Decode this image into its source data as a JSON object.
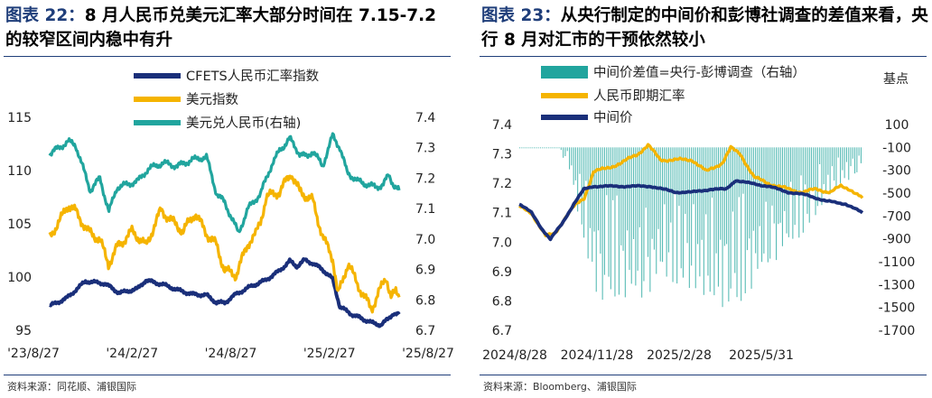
{
  "left": {
    "title_label": "图表 22：",
    "title_text": "8 月人民币兑美元汇率大部分时间在 7.15-7.2 的较窄区间内稳中有升",
    "source": "资料来源：同花顺、浦银国际",
    "chart_data": {
      "type": "line",
      "x_tick_labels": [
        "'23/8/27",
        "'24/2/27",
        "'24/8/27",
        "'25/2/27",
        "'25/8/27"
      ],
      "x_range": [
        "2023-08-27",
        "2025-08-27"
      ],
      "y_left": {
        "ticks": [
          95,
          100,
          105,
          110,
          115
        ],
        "range": [
          95,
          115
        ]
      },
      "y_right": {
        "ticks": [
          6.7,
          6.8,
          6.9,
          7.0,
          7.1,
          7.2,
          7.3,
          7.4
        ],
        "range": [
          6.7,
          7.4
        ]
      },
      "legend_position": "top-left",
      "grid": false,
      "series": [
        {
          "name": "CFETS人民币汇率指数",
          "axis": "left",
          "color": "#1a2f7a",
          "points": [
            [
              "2023-08-27",
              97.3
            ],
            [
              "2023-10-01",
              98.0
            ],
            [
              "2023-11-10",
              99.6
            ],
            [
              "2023-12-20",
              99.4
            ],
            [
              "2024-01-20",
              98.5
            ],
            [
              "2024-02-27",
              98.9
            ],
            [
              "2024-03-15",
              99.7
            ],
            [
              "2024-04-20",
              99.3
            ],
            [
              "2024-05-20",
              98.8
            ],
            [
              "2024-06-20",
              98.4
            ],
            [
              "2024-07-20",
              98.3
            ],
            [
              "2024-08-10",
              97.6
            ],
            [
              "2024-08-27",
              97.6
            ],
            [
              "2024-09-20",
              98.4
            ],
            [
              "2024-10-20",
              99.1
            ],
            [
              "2024-11-20",
              99.7
            ],
            [
              "2024-12-20",
              100.6
            ],
            [
              "2025-01-10",
              101.5
            ],
            [
              "2025-01-25",
              101.0
            ],
            [
              "2025-02-10",
              101.6
            ],
            [
              "2025-02-27",
              101.3
            ],
            [
              "2025-03-20",
              100.7
            ],
            [
              "2025-04-10",
              99.8
            ],
            [
              "2025-04-25",
              97.2
            ],
            [
              "2025-05-10",
              96.8
            ],
            [
              "2025-05-20",
              96.5
            ],
            [
              "2025-06-10",
              96.1
            ],
            [
              "2025-07-01",
              95.7
            ],
            [
              "2025-07-20",
              95.5
            ],
            [
              "2025-08-05",
              96.1
            ],
            [
              "2025-08-15",
              96.6
            ],
            [
              "2025-08-27",
              96.5
            ]
          ]
        },
        {
          "name": "美元指数",
          "axis": "left",
          "color": "#f5b400",
          "points": [
            [
              "2023-08-27",
              103.8
            ],
            [
              "2023-09-20",
              105.5
            ],
            [
              "2023-10-05",
              106.8
            ],
            [
              "2023-10-20",
              106.2
            ],
            [
              "2023-11-15",
              104.3
            ],
            [
              "2023-12-10",
              103.5
            ],
            [
              "2023-12-28",
              101.2
            ],
            [
              "2024-01-15",
              102.8
            ],
            [
              "2024-02-15",
              104.3
            ],
            [
              "2024-02-27",
              103.8
            ],
            [
              "2024-03-15",
              102.9
            ],
            [
              "2024-04-16",
              106.3
            ],
            [
              "2024-05-10",
              105.2
            ],
            [
              "2024-06-01",
              104.3
            ],
            [
              "2024-06-26",
              106.0
            ],
            [
              "2024-07-20",
              104.1
            ],
            [
              "2024-08-10",
              103.0
            ],
            [
              "2024-08-27",
              100.6
            ],
            [
              "2024-09-20",
              100.2
            ],
            [
              "2024-10-15",
              103.2
            ],
            [
              "2024-10-31",
              104.0
            ],
            [
              "2024-11-10",
              105.2
            ],
            [
              "2024-11-22",
              107.5
            ],
            [
              "2024-12-20",
              108.0
            ],
            [
              "2025-01-13",
              109.8
            ],
            [
              "2025-01-31",
              108.0
            ],
            [
              "2025-02-27",
              107.2
            ],
            [
              "2025-03-20",
              103.8
            ],
            [
              "2025-04-10",
              101.8
            ],
            [
              "2025-04-21",
              98.3
            ],
            [
              "2025-05-12",
              101.3
            ],
            [
              "2025-06-01",
              99.3
            ],
            [
              "2025-06-30",
              97.0
            ],
            [
              "2025-07-15",
              98.5
            ],
            [
              "2025-07-31",
              100.0
            ],
            [
              "2025-08-10",
              98.2
            ],
            [
              "2025-08-20",
              98.5
            ],
            [
              "2025-08-27",
              98.1
            ]
          ]
        },
        {
          "name": "美元兑人民币(右轴)",
          "axis": "right",
          "color": "#21a59e",
          "points": [
            [
              "2023-08-27",
              7.28
            ],
            [
              "2023-09-15",
              7.3
            ],
            [
              "2023-10-05",
              7.32
            ],
            [
              "2023-10-20",
              7.31
            ],
            [
              "2023-11-20",
              7.16
            ],
            [
              "2023-12-10",
              7.2
            ],
            [
              "2023-12-29",
              7.09
            ],
            [
              "2024-01-15",
              7.17
            ],
            [
              "2024-02-27",
              7.19
            ],
            [
              "2024-03-20",
              7.23
            ],
            [
              "2024-04-20",
              7.25
            ],
            [
              "2024-05-20",
              7.24
            ],
            [
              "2024-06-20",
              7.26
            ],
            [
              "2024-07-20",
              7.27
            ],
            [
              "2024-08-10",
              7.15
            ],
            [
              "2024-08-27",
              7.12
            ],
            [
              "2024-09-25",
              7.02
            ],
            [
              "2024-10-15",
              7.1
            ],
            [
              "2024-11-10",
              7.15
            ],
            [
              "2024-12-05",
              7.25
            ],
            [
              "2024-12-20",
              7.29
            ],
            [
              "2025-01-10",
              7.33
            ],
            [
              "2025-01-31",
              7.28
            ],
            [
              "2025-02-15",
              7.27
            ],
            [
              "2025-02-27",
              7.29
            ],
            [
              "2025-03-20",
              7.24
            ],
            [
              "2025-04-10",
              7.34
            ],
            [
              "2025-04-25",
              7.3
            ],
            [
              "2025-05-10",
              7.22
            ],
            [
              "2025-06-01",
              7.19
            ],
            [
              "2025-06-20",
              7.18
            ],
            [
              "2025-07-10",
              7.17
            ],
            [
              "2025-07-25",
              7.18
            ],
            [
              "2025-08-05",
              7.21
            ],
            [
              "2025-08-15",
              7.18
            ],
            [
              "2025-08-27",
              7.16
            ]
          ]
        }
      ]
    }
  },
  "right": {
    "title_label": "图表 23：",
    "title_text": "从央行制定的中间价和彭博社调查的差值来看，央行 8 月对汇市的干预依然较小",
    "source": "资料来源：Bloomberg、浦银国际",
    "unit_right": "基点",
    "chart_data": {
      "type": "bar+line",
      "x_tick_labels": [
        "2024/8/28",
        "2024/11/28",
        "2025/2/28",
        "2025/5/31"
      ],
      "x_range": [
        "2024-08-28",
        "2025-08-28"
      ],
      "y_left": {
        "ticks": [
          6.7,
          6.8,
          6.9,
          7.0,
          7.1,
          7.2,
          7.3,
          7.4
        ],
        "range": [
          6.7,
          7.4
        ]
      },
      "y_right": {
        "ticks": [
          100,
          -100,
          -300,
          -500,
          -700,
          -900,
          -1100,
          -1300,
          -1500,
          -1700
        ],
        "range": [
          -1700,
          100
        ]
      },
      "legend_position": "top-left",
      "grid": false,
      "bars": {
        "name": "中间价差值=央行-彭博调查（右轴）",
        "axis": "right",
        "color": "#21a59e",
        "envelope": [
          [
            "2024-08-28",
            -30
          ],
          [
            "2024-10-05",
            -60
          ],
          [
            "2024-10-20",
            -300
          ],
          [
            "2024-11-05",
            -1000
          ],
          [
            "2024-11-20",
            -1450
          ],
          [
            "2024-12-10",
            -1400
          ],
          [
            "2025-01-05",
            -1450
          ],
          [
            "2025-01-25",
            -1250
          ],
          [
            "2025-02-15",
            -1300
          ],
          [
            "2025-03-10",
            -1400
          ],
          [
            "2025-04-01",
            -1500
          ],
          [
            "2025-04-20",
            -1450
          ],
          [
            "2025-05-10",
            -1250
          ],
          [
            "2025-06-01",
            -1050
          ],
          [
            "2025-06-20",
            -900
          ],
          [
            "2025-07-10",
            -700
          ],
          [
            "2025-07-25",
            -500
          ],
          [
            "2025-08-10",
            -400
          ],
          [
            "2025-08-28",
            -300
          ]
        ]
      },
      "series": [
        {
          "name": "人民币即期汇率",
          "axis": "left",
          "color": "#f5b400",
          "points": [
            [
              "2024-08-28",
              7.12
            ],
            [
              "2024-09-10",
              7.1
            ],
            [
              "2024-09-25",
              7.02
            ],
            [
              "2024-10-05",
              7.03
            ],
            [
              "2024-10-15",
              7.08
            ],
            [
              "2024-10-25",
              7.12
            ],
            [
              "2024-11-05",
              7.15
            ],
            [
              "2024-11-15",
              7.24
            ],
            [
              "2024-11-28",
              7.25
            ],
            [
              "2024-12-15",
              7.27
            ],
            [
              "2025-01-01",
              7.3
            ],
            [
              "2025-01-12",
              7.33
            ],
            [
              "2025-01-25",
              7.28
            ],
            [
              "2025-02-15",
              7.28
            ],
            [
              "2025-02-28",
              7.28
            ],
            [
              "2025-03-15",
              7.24
            ],
            [
              "2025-04-01",
              7.27
            ],
            [
              "2025-04-10",
              7.32
            ],
            [
              "2025-04-20",
              7.3
            ],
            [
              "2025-05-05",
              7.22
            ],
            [
              "2025-05-20",
              7.2
            ],
            [
              "2025-06-10",
              7.18
            ],
            [
              "2025-06-25",
              7.17
            ],
            [
              "2025-07-10",
              7.18
            ],
            [
              "2025-07-25",
              7.17
            ],
            [
              "2025-08-05",
              7.19
            ],
            [
              "2025-08-15",
              7.18
            ],
            [
              "2025-08-28",
              7.15
            ]
          ]
        },
        {
          "name": "中间价",
          "axis": "left",
          "color": "#1a2f7a",
          "points": [
            [
              "2024-08-28",
              7.13
            ],
            [
              "2024-09-10",
              7.1
            ],
            [
              "2024-09-20",
              7.05
            ],
            [
              "2024-09-30",
              7.01
            ],
            [
              "2024-10-12",
              7.06
            ],
            [
              "2024-10-25",
              7.13
            ],
            [
              "2024-11-05",
              7.18
            ],
            [
              "2024-11-15",
              7.19
            ],
            [
              "2024-11-28",
              7.19
            ],
            [
              "2024-12-20",
              7.19
            ],
            [
              "2025-01-15",
              7.19
            ],
            [
              "2025-02-10",
              7.17
            ],
            [
              "2025-02-28",
              7.17
            ],
            [
              "2025-03-20",
              7.18
            ],
            [
              "2025-04-05",
              7.18
            ],
            [
              "2025-04-15",
              7.21
            ],
            [
              "2025-05-01",
              7.2
            ],
            [
              "2025-05-20",
              7.19
            ],
            [
              "2025-06-10",
              7.17
            ],
            [
              "2025-06-30",
              7.16
            ],
            [
              "2025-07-20",
              7.14
            ],
            [
              "2025-08-10",
              7.13
            ],
            [
              "2025-08-28",
              7.1
            ]
          ]
        }
      ]
    }
  }
}
